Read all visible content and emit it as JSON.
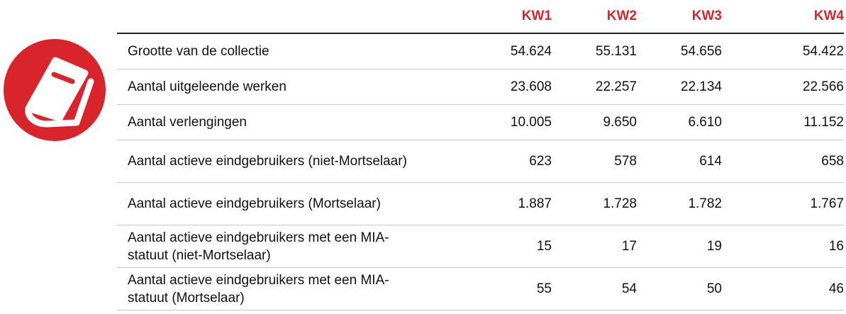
{
  "table": {
    "columns": [
      "KW1",
      "KW2",
      "KW3",
      "KW4"
    ],
    "rows": [
      {
        "label": "Grootte van de collectie",
        "values": [
          "54.624",
          "55.131",
          "54.656",
          "54.422"
        ]
      },
      {
        "label": "Aantal uitgeleende werken",
        "values": [
          "23.608",
          "22.257",
          "22.134",
          "22.566"
        ]
      },
      {
        "label": "Aantal verlengingen",
        "values": [
          "10.005",
          "9.650",
          "6.610",
          "11.152"
        ]
      },
      {
        "label": "Aantal actieve eindgebruikers (niet-Mortselaar)",
        "values": [
          "623",
          "578",
          "614",
          "658"
        ]
      },
      {
        "label": "Aantal actieve eindgebruikers (Mortselaar)",
        "values": [
          "1.887",
          "1.728",
          "1.782",
          "1.767"
        ]
      },
      {
        "label": "Aantal actieve eindgebruikers met een MIA-statuut (niet-Mortselaar)",
        "values": [
          "15",
          "17",
          "19",
          "16"
        ]
      },
      {
        "label": "Aantal actieve eindgebruikers met een MIA-statuut (Mortselaar)",
        "values": [
          "55",
          "54",
          "50",
          "46"
        ]
      }
    ]
  }
}
